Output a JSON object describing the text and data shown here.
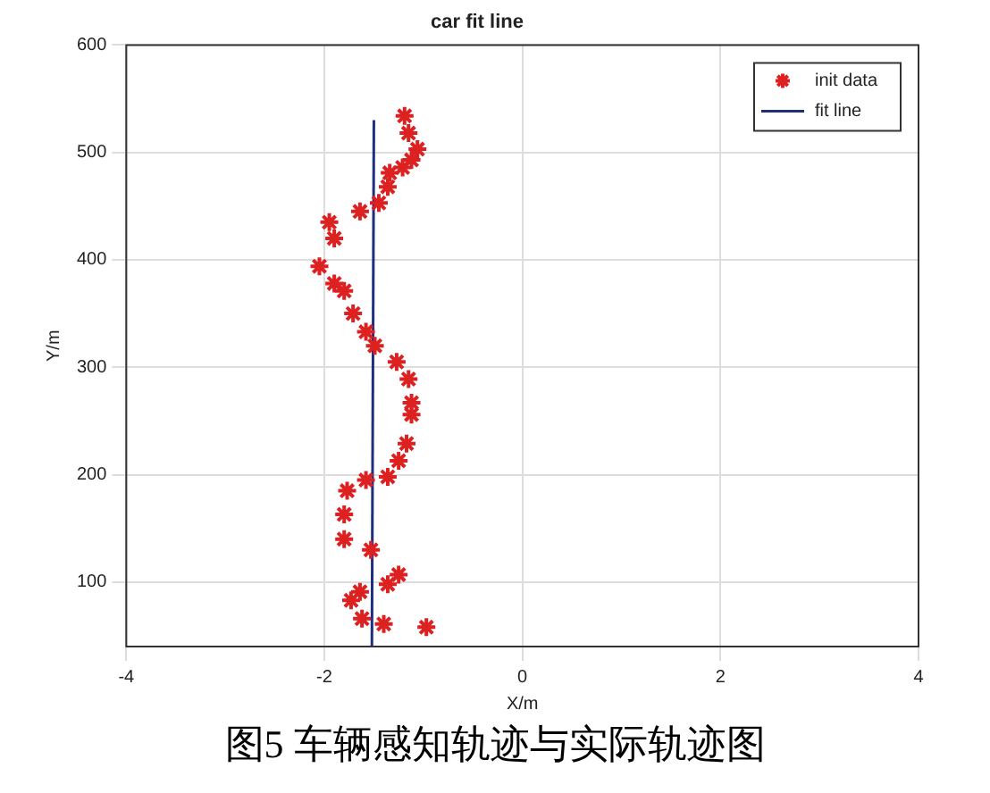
{
  "chart_data": {
    "type": "scatter",
    "title": "car fit line",
    "xlabel": "X/m",
    "ylabel": "Y/m",
    "xlim": [
      -4,
      4
    ],
    "xticks": [
      -4,
      -2,
      0,
      2,
      4
    ],
    "ylim": [
      40,
      600
    ],
    "yticks": [
      100,
      200,
      300,
      400,
      500,
      600
    ],
    "grid": true,
    "legend": "top right",
    "marker": "cross",
    "series": [
      {
        "name": "init data",
        "color": "#dd2020",
        "x": [
          -1.19,
          -1.15,
          -1.06,
          -1.12,
          -1.21,
          -1.34,
          -1.36,
          -1.45,
          -1.64,
          -1.95,
          -1.9,
          -2.05,
          -1.9,
          -1.8,
          -1.71,
          -1.58,
          -1.49,
          -1.27,
          -1.15,
          -1.12,
          -1.12,
          -1.17,
          -1.25,
          -1.36,
          -1.58,
          -1.77,
          -1.8,
          -1.8,
          -1.53,
          -1.25,
          -1.36,
          -1.64,
          -1.73,
          -1.62,
          -1.4,
          -0.97
        ],
        "values": [
          534,
          518,
          503,
          493,
          486,
          481,
          468,
          453,
          445,
          435,
          420,
          394,
          378,
          371,
          350,
          333,
          320,
          305,
          289,
          267,
          256,
          229,
          213,
          198,
          195,
          185,
          163,
          140,
          130,
          107,
          98,
          91,
          83,
          66,
          61,
          58
        ]
      },
      {
        "name": "fit line",
        "type": "line",
        "marker": "none",
        "color": "#1f2f7f",
        "x": [
          -1.52,
          -1.5
        ],
        "values": [
          40,
          530
        ]
      }
    ],
    "annotations": [
      "图5    车辆感知轨迹与实际轨迹图"
    ]
  }
}
